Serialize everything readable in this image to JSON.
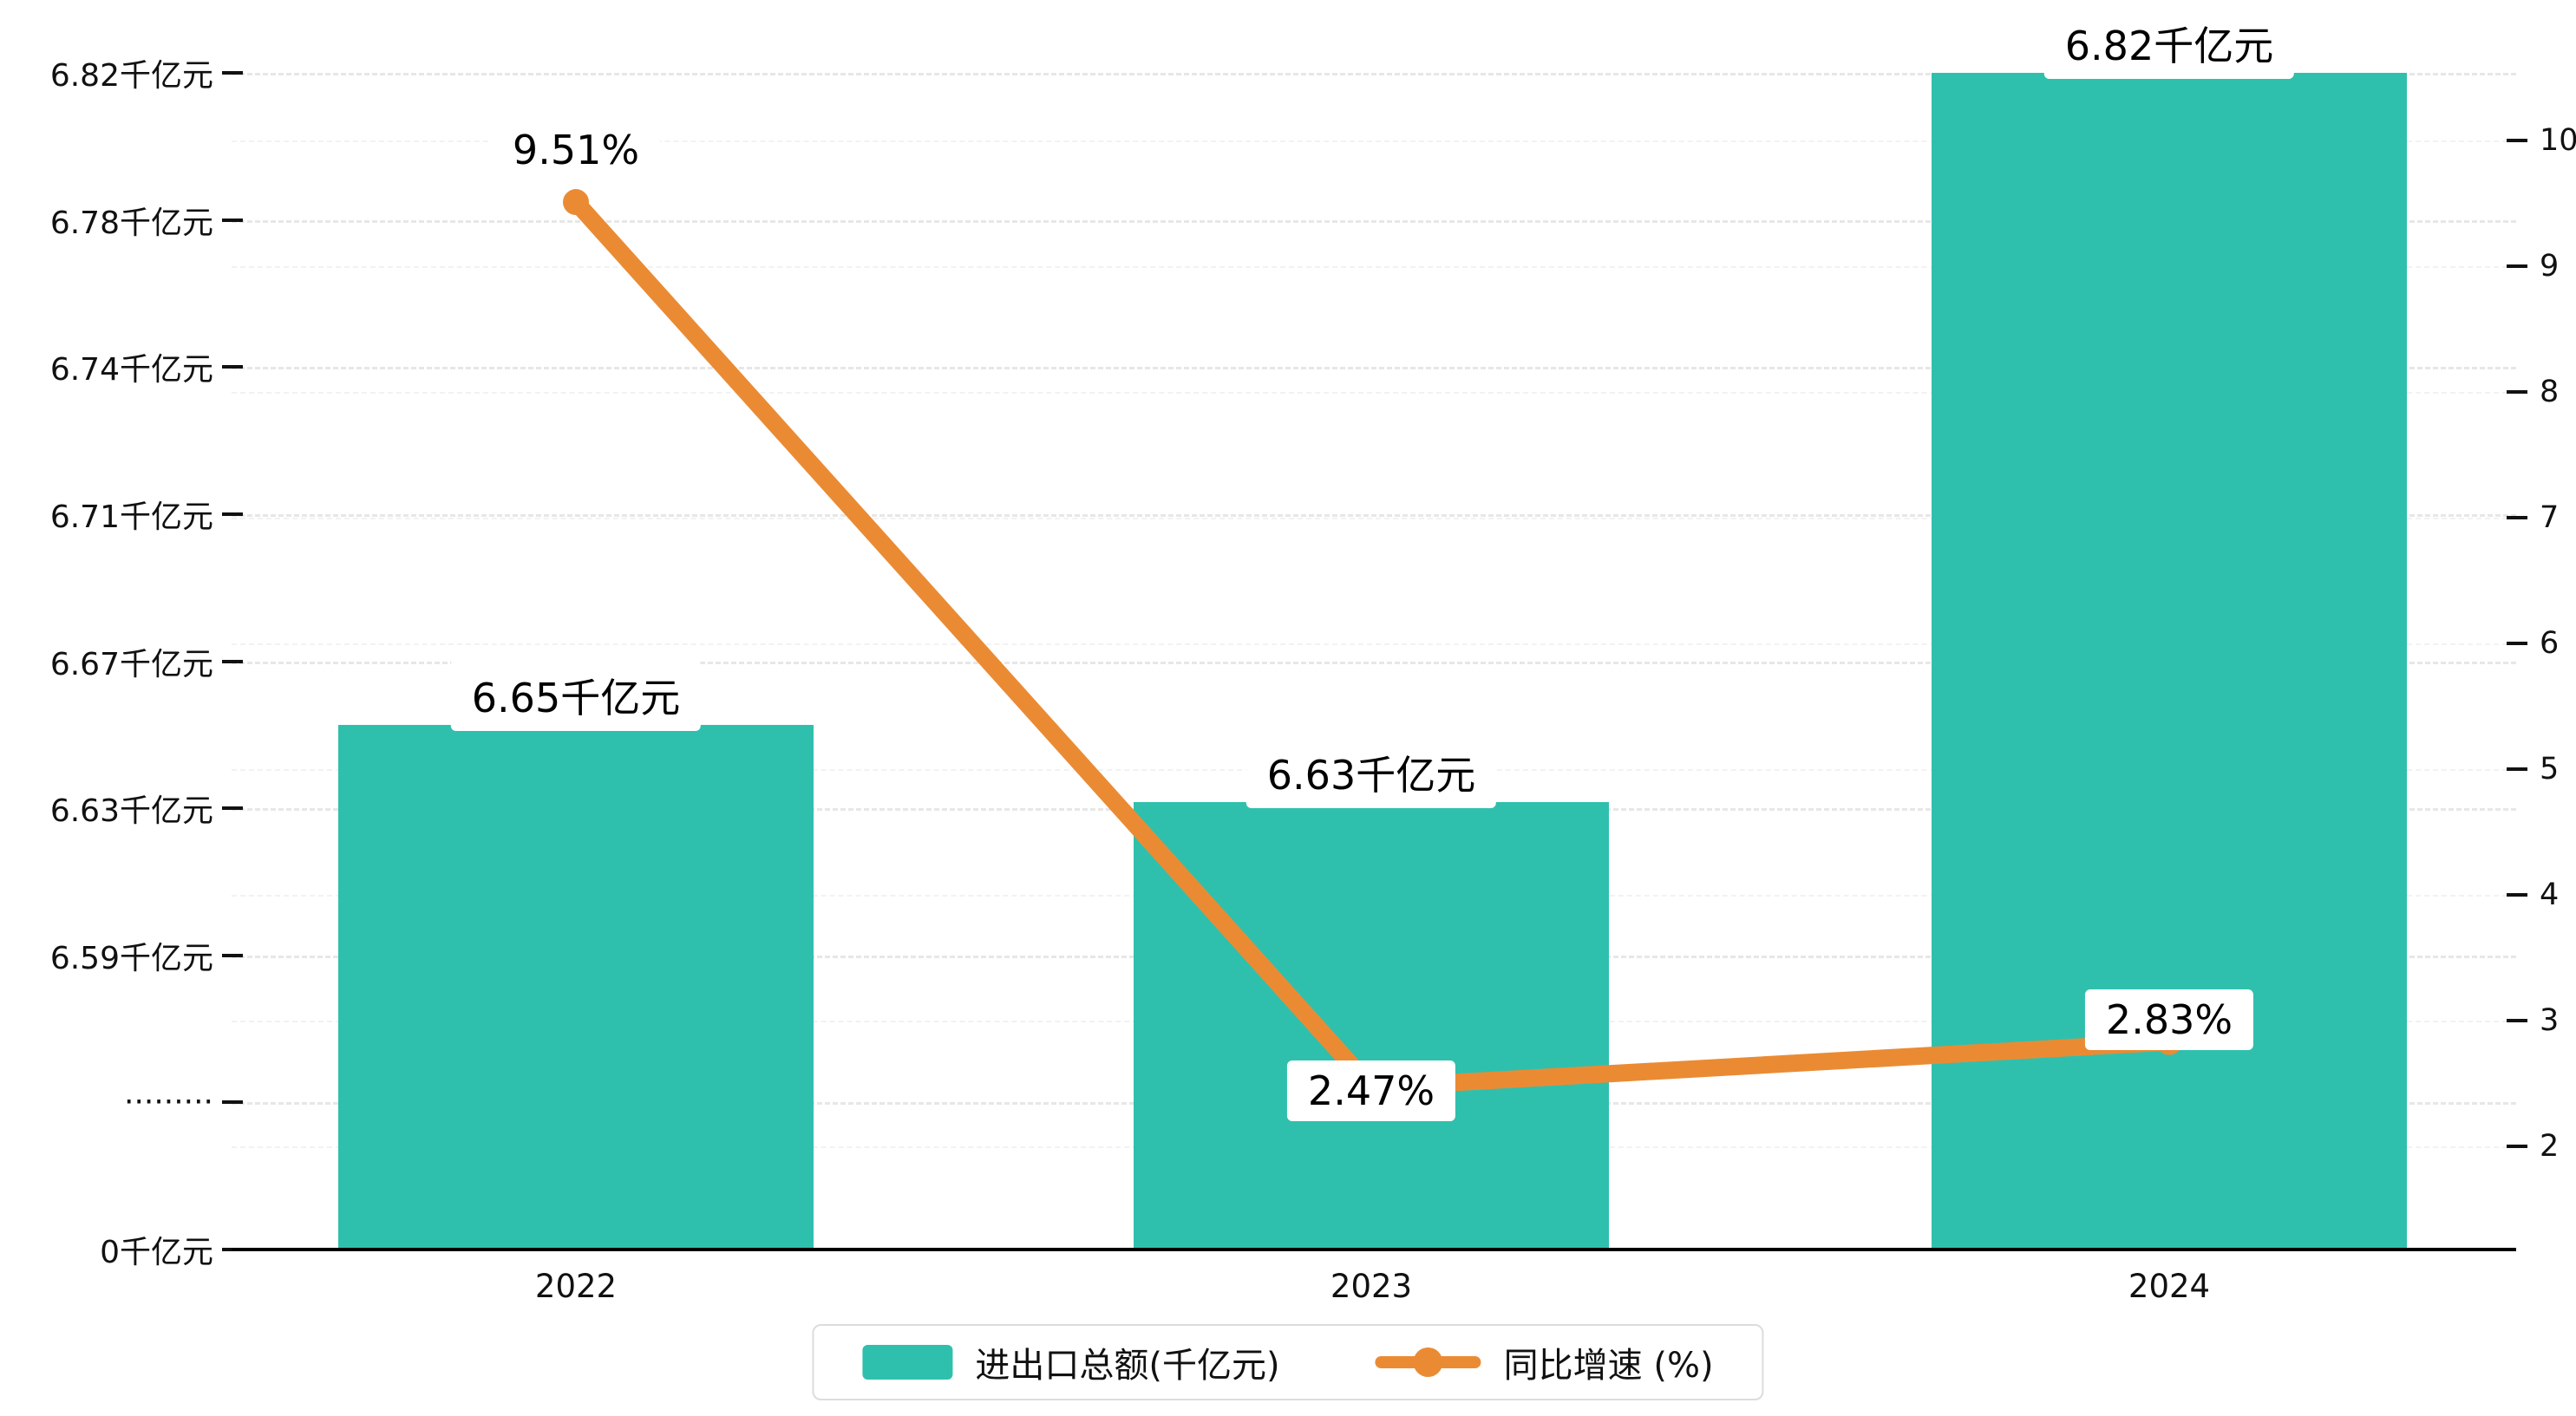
{
  "chart_data": {
    "type": "bar",
    "subtype": "combo-bar-line-dual-axis",
    "title": "",
    "categories": [
      "2022",
      "2023",
      "2024"
    ],
    "series": [
      {
        "name": "进出口总额(千亿元)",
        "chart_type": "bar",
        "axis": "left",
        "color": "#2fc0ad",
        "values": [
          6.65,
          6.63,
          6.82
        ],
        "labels": [
          "6.65千亿元",
          "6.63千亿元",
          "6.82千亿元"
        ]
      },
      {
        "name": "同比增速 (%)",
        "chart_type": "line",
        "axis": "right",
        "color": "#ea8b34",
        "values": [
          9.51,
          2.47,
          2.83
        ],
        "labels": [
          "9.51%",
          "2.47%",
          "2.83%"
        ]
      }
    ],
    "left_axis": {
      "unit": "千亿元",
      "axis_break": true,
      "tick_labels": [
        "6.82千亿元",
        "6.78千亿元",
        "6.74千亿元",
        "6.71千亿元",
        "6.67千亿元",
        "6.63千亿元",
        "6.59千亿元",
        "·········",
        "0千亿元"
      ]
    },
    "right_axis": {
      "tick_labels": [
        "10",
        "9",
        "8",
        "7",
        "6",
        "5",
        "4",
        "3",
        "2"
      ]
    },
    "legend": {
      "position": "bottom",
      "items": [
        {
          "label": "进出口总额(千亿元)",
          "marker": "bar",
          "color": "#2fc0ad"
        },
        {
          "label": "同比增速 (%)",
          "marker": "line",
          "color": "#ea8b34"
        }
      ]
    },
    "grid": true
  },
  "colors": {
    "bar": "#2fc0ad",
    "line": "#ea8b34",
    "axis": "#000000",
    "grid": "#e7e7e7",
    "background": "#ffffff"
  }
}
